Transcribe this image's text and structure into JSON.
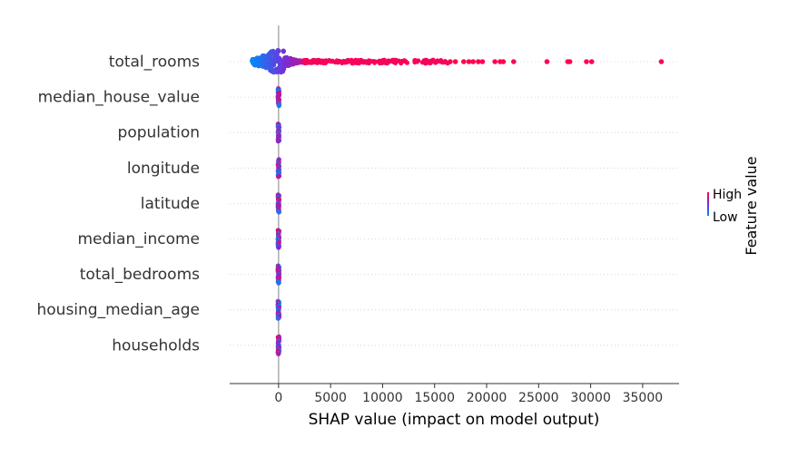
{
  "chart_data": {
    "type": "scatter",
    "variant": "shap-beeswarm-summary",
    "title": "",
    "xlabel": "SHAP value (impact on model output)",
    "ylabel": "",
    "xlim": [
      -4700,
      38500
    ],
    "xticks": [
      0,
      5000,
      10000,
      15000,
      20000,
      25000,
      30000,
      35000
    ],
    "grid": false,
    "features": [
      {
        "name": "total_rooms",
        "shap_min": -2600,
        "shap_max": 36800,
        "spread": "wide",
        "outliers": [
          16500,
          17000,
          17800,
          18300,
          18700,
          19200,
          19600,
          20800,
          21300,
          21600,
          22600,
          25800,
          27800,
          28000,
          29600,
          30100,
          36800
        ]
      },
      {
        "name": "median_house_value",
        "shap_min": -10,
        "shap_max": 10,
        "spread": "narrow",
        "outliers": []
      },
      {
        "name": "population",
        "shap_min": -10,
        "shap_max": 10,
        "spread": "narrow",
        "outliers": []
      },
      {
        "name": "longitude",
        "shap_min": -10,
        "shap_max": 10,
        "spread": "narrow",
        "outliers": []
      },
      {
        "name": "latitude",
        "shap_min": -10,
        "shap_max": 10,
        "spread": "narrow",
        "outliers": []
      },
      {
        "name": "median_income",
        "shap_min": -10,
        "shap_max": 10,
        "spread": "narrow",
        "outliers": []
      },
      {
        "name": "total_bedrooms",
        "shap_min": -10,
        "shap_max": 10,
        "spread": "narrow",
        "outliers": []
      },
      {
        "name": "housing_median_age",
        "shap_min": -10,
        "shap_max": 10,
        "spread": "narrow",
        "outliers": []
      },
      {
        "name": "households",
        "shap_min": -10,
        "shap_max": 10,
        "spread": "narrow",
        "outliers": []
      }
    ],
    "colorbar": {
      "label": "Feature value",
      "high_label": "High",
      "low_label": "Low",
      "colors": {
        "low": "#008afb",
        "mid": "#7c2bd6",
        "high": "#ff0052"
      }
    },
    "zero_line_color": "#999999"
  }
}
